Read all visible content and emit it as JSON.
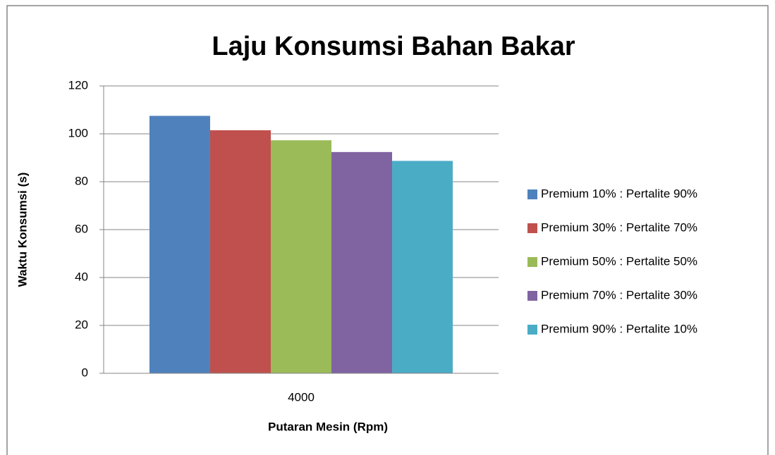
{
  "chart_data": {
    "type": "bar",
    "title": "Laju Konsumsi Bahan Bakar",
    "xlabel": "Putaran Mesin (Rpm)",
    "ylabel": "Waktu Konsumsi (s)",
    "categories": [
      "4000"
    ],
    "series": [
      {
        "name": "Premium 10% : Pertalite 90%",
        "color": "#4f81bd",
        "values": [
          107.5
        ]
      },
      {
        "name": "Premium 30% : Pertalite 70%",
        "color": "#c0504d",
        "values": [
          101.5
        ]
      },
      {
        "name": "Premium 50% : Pertalite 50%",
        "color": "#9bbb59",
        "values": [
          97.3
        ]
      },
      {
        "name": "Premium 70% : Pertalite 30%",
        "color": "#8064a2",
        "values": [
          92.4
        ]
      },
      {
        "name": "Premium 90% : Pertalite 10%",
        "color": "#4bacc6",
        "values": [
          88.7
        ]
      }
    ],
    "ylim": [
      0,
      120
    ],
    "yticks": [
      0,
      20,
      40,
      60,
      80,
      100,
      120
    ],
    "grid": true,
    "legend": "right"
  }
}
